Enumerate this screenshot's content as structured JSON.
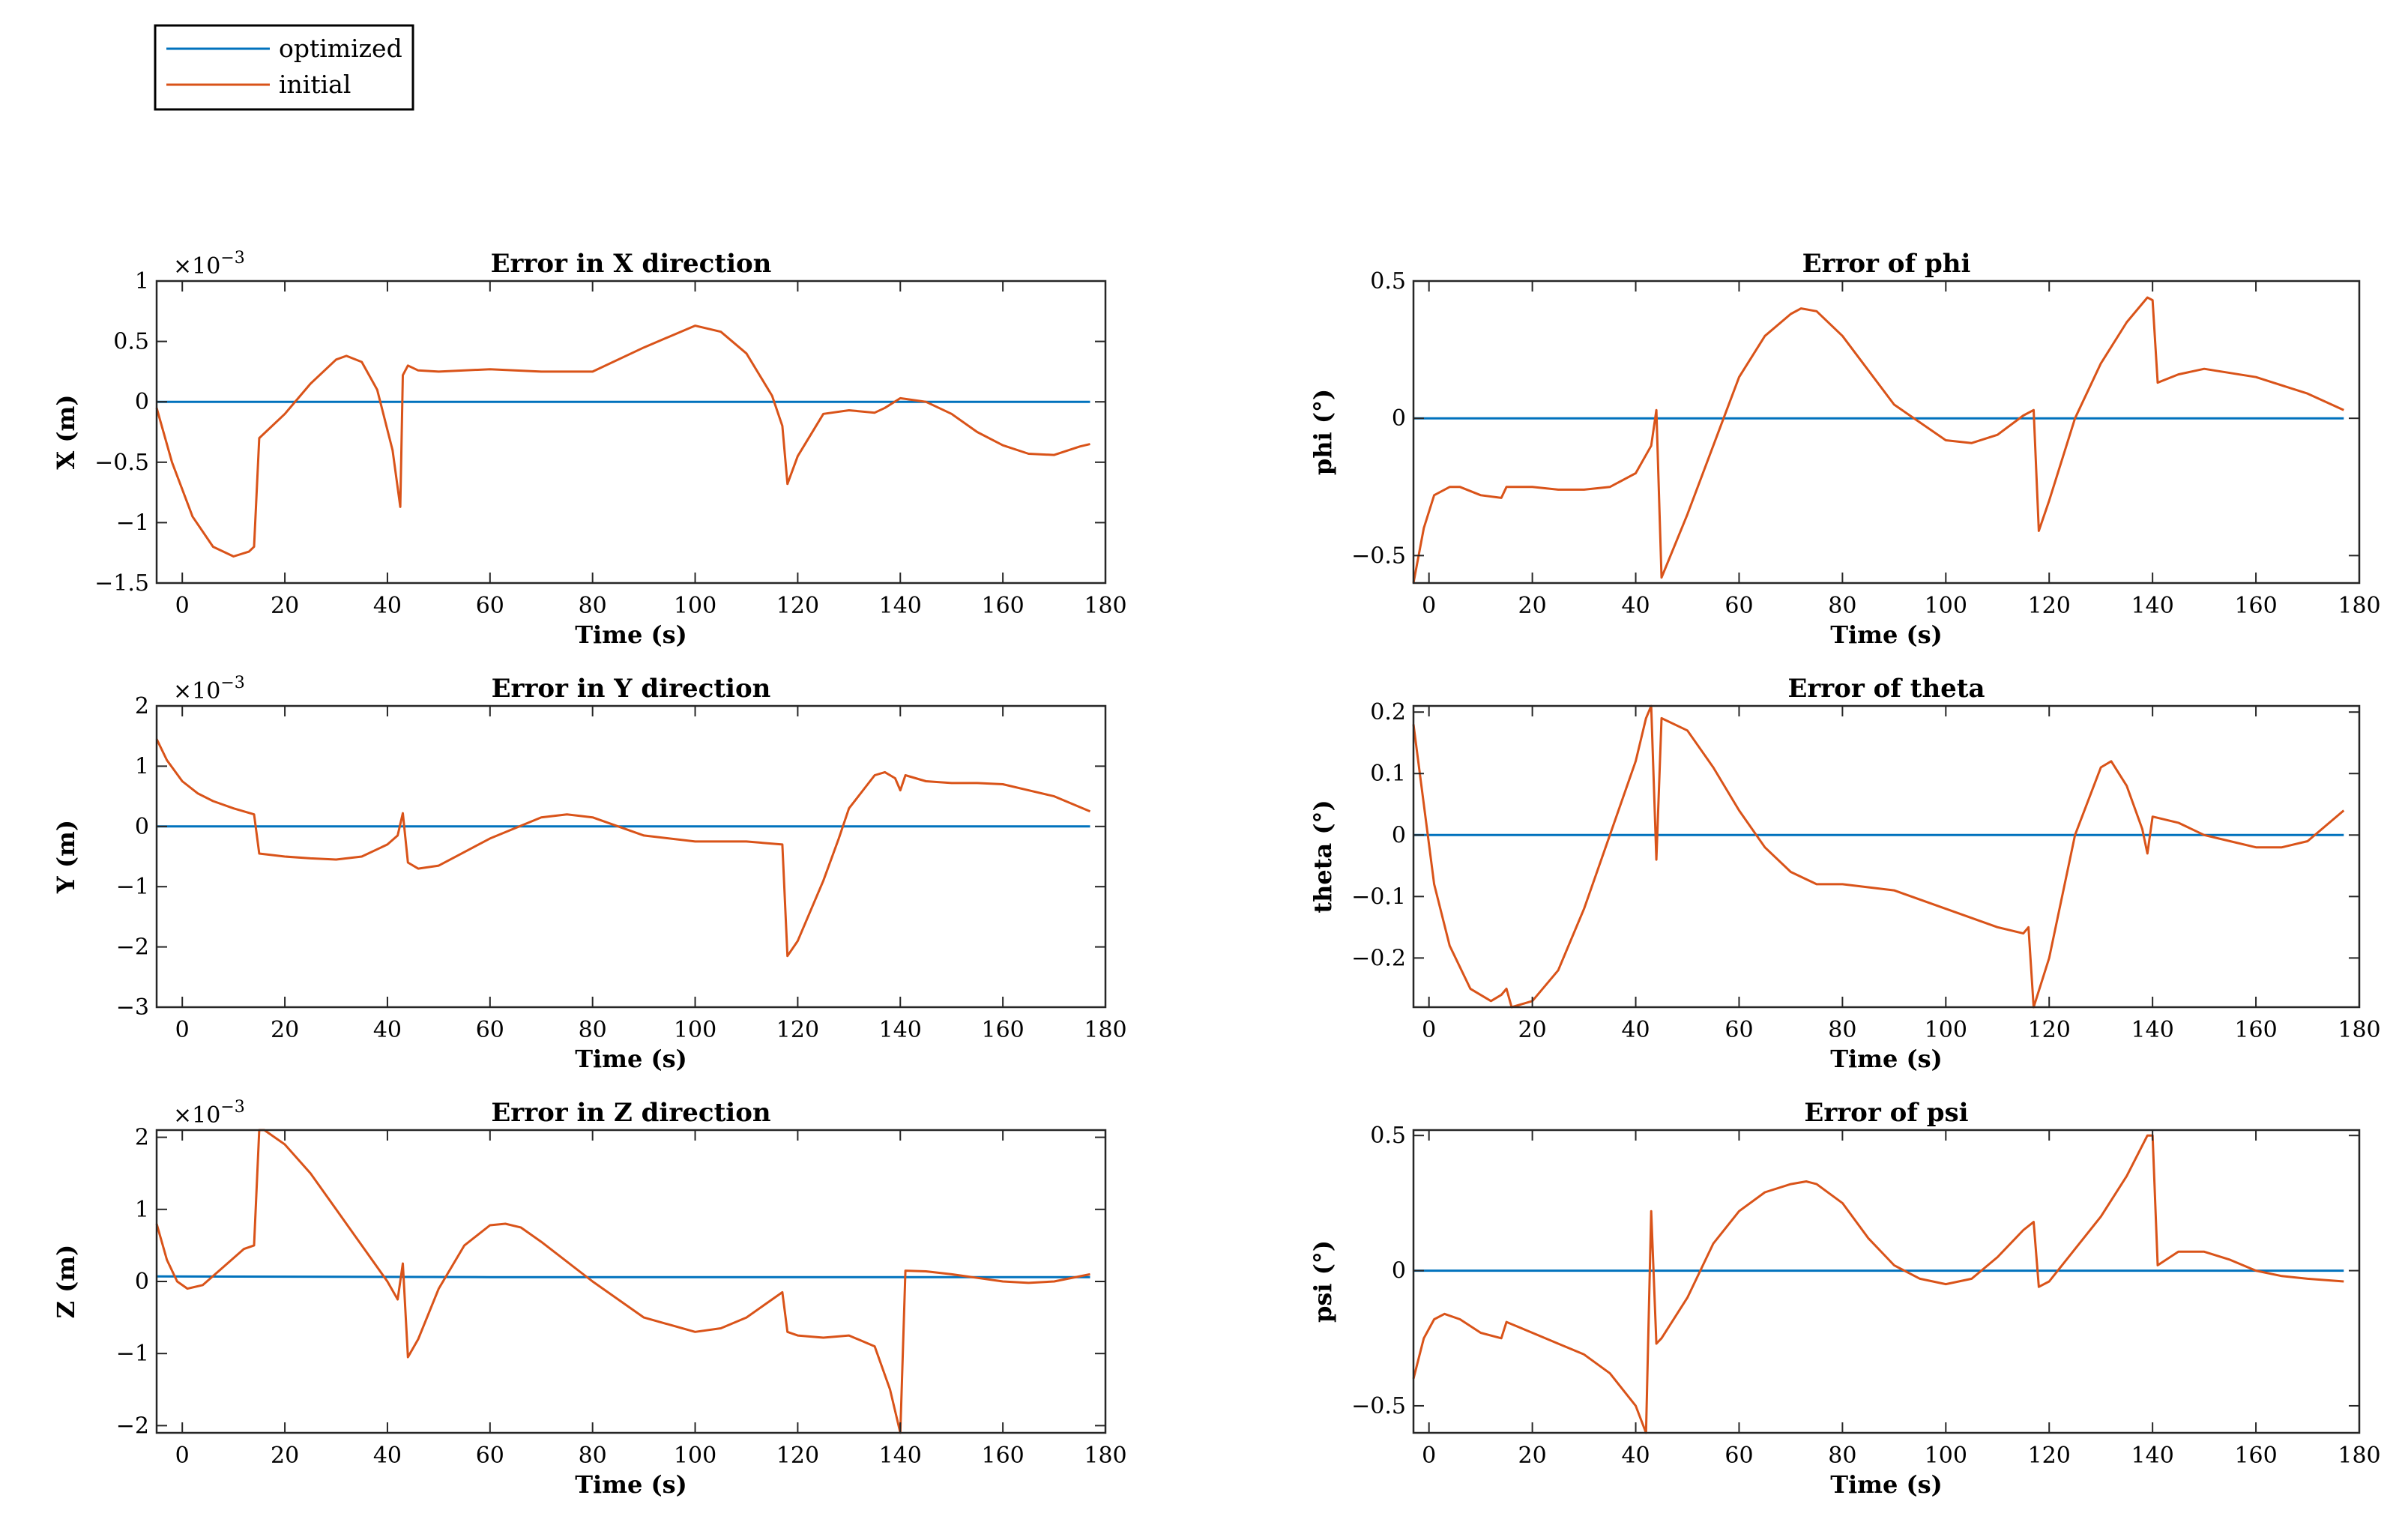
{
  "legend": {
    "entries": [
      {
        "label": "optimized",
        "color": "#0072BD"
      },
      {
        "label": "initial",
        "color": "#D95319"
      }
    ]
  },
  "chart_data": [
    {
      "type": "line",
      "title": "Error in X direction",
      "xlabel": "Time (s)",
      "ylabel": "X (m)",
      "xlim": [
        -5,
        180
      ],
      "ylim": [
        -1.5,
        1
      ],
      "xticks": [
        0,
        20,
        40,
        60,
        80,
        100,
        120,
        140,
        160,
        180
      ],
      "yticks": [
        -1.5,
        -1,
        -0.5,
        0,
        0.5,
        1
      ],
      "ytick_labels": [
        "−1.5",
        "−1",
        "−0.5",
        "0",
        "0.5",
        "1"
      ],
      "exponent_label": "×10",
      "exponent_power": "−3",
      "series": [
        {
          "name": "optimized",
          "x": [
            -5,
            177
          ],
          "y": [
            0,
            0
          ]
        },
        {
          "name": "initial",
          "x": [
            -5,
            -2,
            2,
            6,
            10,
            13,
            14,
            15,
            20,
            25,
            30,
            32,
            35,
            38,
            41,
            42.5,
            43,
            44,
            46,
            50,
            60,
            70,
            80,
            90,
            100,
            105,
            110,
            115,
            117,
            118,
            120,
            125,
            130,
            135,
            137,
            140,
            145,
            150,
            155,
            160,
            165,
            170,
            175,
            177
          ],
          "y": [
            -0.05,
            -0.5,
            -0.95,
            -1.2,
            -1.28,
            -1.24,
            -1.2,
            -0.3,
            -0.1,
            0.15,
            0.35,
            0.38,
            0.33,
            0.1,
            -0.4,
            -0.87,
            0.22,
            0.3,
            0.26,
            0.25,
            0.27,
            0.25,
            0.25,
            0.45,
            0.63,
            0.58,
            0.4,
            0.05,
            -0.2,
            -0.68,
            -0.45,
            -0.1,
            -0.07,
            -0.09,
            -0.05,
            0.03,
            0.0,
            -0.1,
            -0.25,
            -0.36,
            -0.43,
            -0.44,
            -0.37,
            -0.35
          ]
        }
      ]
    },
    {
      "type": "line",
      "title": "Error in Y direction",
      "xlabel": "Time (s)",
      "ylabel": "Y (m)",
      "xlim": [
        -5,
        180
      ],
      "ylim": [
        -3,
        2
      ],
      "xticks": [
        0,
        20,
        40,
        60,
        80,
        100,
        120,
        140,
        160,
        180
      ],
      "yticks": [
        -3,
        -2,
        -1,
        0,
        1,
        2
      ],
      "ytick_labels": [
        "−3",
        "−2",
        "−1",
        "0",
        "1",
        "2"
      ],
      "exponent_label": "×10",
      "exponent_power": "−3",
      "series": [
        {
          "name": "optimized",
          "x": [
            -5,
            177
          ],
          "y": [
            0,
            0
          ]
        },
        {
          "name": "initial",
          "x": [
            -5,
            -3,
            0,
            3,
            6,
            10,
            14,
            15,
            20,
            25,
            30,
            35,
            40,
            42,
            43,
            44,
            46,
            50,
            60,
            70,
            75,
            80,
            90,
            100,
            110,
            117,
            118,
            120,
            125,
            128,
            130,
            135,
            137,
            139,
            140,
            141,
            145,
            150,
            155,
            160,
            165,
            170,
            177
          ],
          "y": [
            1.45,
            1.1,
            0.75,
            0.55,
            0.42,
            0.3,
            0.2,
            -0.45,
            -0.5,
            -0.53,
            -0.55,
            -0.5,
            -0.3,
            -0.15,
            0.22,
            -0.6,
            -0.7,
            -0.65,
            -0.2,
            0.15,
            0.2,
            0.15,
            -0.15,
            -0.25,
            -0.25,
            -0.3,
            -2.15,
            -1.9,
            -0.9,
            -0.2,
            0.3,
            0.85,
            0.9,
            0.8,
            0.6,
            0.85,
            0.75,
            0.72,
            0.72,
            0.7,
            0.6,
            0.5,
            0.25
          ]
        }
      ]
    },
    {
      "type": "line",
      "title": "Error in Z direction",
      "xlabel": "Time (s)",
      "ylabel": "Z (m)",
      "xlim": [
        -5,
        180
      ],
      "ylim": [
        -2.1,
        2.1
      ],
      "xticks": [
        0,
        20,
        40,
        60,
        80,
        100,
        120,
        140,
        160,
        180
      ],
      "yticks": [
        -2,
        -1,
        0,
        1,
        2
      ],
      "ytick_labels": [
        "−2",
        "−1",
        "0",
        "1",
        "2"
      ],
      "exponent_label": "×10",
      "exponent_power": "−3",
      "series": [
        {
          "name": "optimized",
          "x": [
            -5,
            60,
            120,
            177
          ],
          "y": [
            0.07,
            0.06,
            0.06,
            0.06
          ]
        },
        {
          "name": "initial",
          "x": [
            -5,
            -3,
            -1,
            1,
            4,
            8,
            12,
            14,
            15,
            16,
            20,
            25,
            30,
            35,
            40,
            42,
            43,
            44,
            46,
            50,
            55,
            60,
            63,
            66,
            70,
            80,
            90,
            100,
            105,
            110,
            115,
            117,
            118,
            120,
            125,
            130,
            135,
            138,
            140,
            141,
            145,
            150,
            155,
            160,
            165,
            170,
            177
          ],
          "y": [
            0.8,
            0.3,
            0.0,
            -0.1,
            -0.05,
            0.2,
            0.45,
            0.5,
            2.1,
            2.1,
            1.9,
            1.5,
            1.0,
            0.5,
            0.0,
            -0.25,
            0.25,
            -1.05,
            -0.8,
            -0.1,
            0.5,
            0.78,
            0.8,
            0.75,
            0.55,
            0.0,
            -0.5,
            -0.7,
            -0.65,
            -0.5,
            -0.25,
            -0.15,
            -0.7,
            -0.75,
            -0.78,
            -0.75,
            -0.9,
            -1.5,
            -2.1,
            0.15,
            0.14,
            0.1,
            0.05,
            0.0,
            -0.02,
            0.0,
            0.1
          ]
        }
      ]
    },
    {
      "type": "line",
      "title": "Error of phi",
      "xlabel": "Time (s)",
      "ylabel": "phi (°)",
      "xlim": [
        -3,
        180
      ],
      "ylim": [
        -0.6,
        0.5
      ],
      "xticks": [
        0,
        20,
        40,
        60,
        80,
        100,
        120,
        140,
        160,
        180
      ],
      "yticks": [
        -0.5,
        0,
        0.5
      ],
      "ytick_labels": [
        "−0.5",
        "0",
        "0.5"
      ],
      "series": [
        {
          "name": "optimized",
          "x": [
            -3,
            177
          ],
          "y": [
            0,
            0
          ]
        },
        {
          "name": "initial",
          "x": [
            -3,
            -1,
            1,
            4,
            6,
            10,
            14,
            15,
            20,
            25,
            30,
            35,
            40,
            43,
            44,
            45,
            50,
            55,
            60,
            65,
            70,
            72,
            75,
            80,
            90,
            100,
            105,
            110,
            115,
            117,
            118,
            120,
            125,
            130,
            135,
            139,
            140,
            141,
            145,
            150,
            160,
            170,
            177
          ],
          "y": [
            -0.6,
            -0.4,
            -0.28,
            -0.25,
            -0.25,
            -0.28,
            -0.29,
            -0.25,
            -0.25,
            -0.26,
            -0.26,
            -0.25,
            -0.2,
            -0.1,
            0.03,
            -0.58,
            -0.35,
            -0.1,
            0.15,
            0.3,
            0.38,
            0.4,
            0.39,
            0.3,
            0.05,
            -0.08,
            -0.09,
            -0.06,
            0.01,
            0.03,
            -0.41,
            -0.3,
            0.0,
            0.2,
            0.35,
            0.44,
            0.43,
            0.13,
            0.16,
            0.18,
            0.15,
            0.09,
            0.03
          ]
        }
      ]
    },
    {
      "type": "line",
      "title": "Error of theta",
      "xlabel": "Time (s)",
      "ylabel": "theta (°)",
      "xlim": [
        -3,
        180
      ],
      "ylim": [
        -0.28,
        0.21
      ],
      "xticks": [
        0,
        20,
        40,
        60,
        80,
        100,
        120,
        140,
        160,
        180
      ],
      "yticks": [
        -0.2,
        -0.1,
        0,
        0.1,
        0.2
      ],
      "ytick_labels": [
        "−0.2",
        "−0.1",
        "0",
        "0.1",
        "0.2"
      ],
      "series": [
        {
          "name": "optimized",
          "x": [
            -3,
            177
          ],
          "y": [
            0,
            0
          ]
        },
        {
          "name": "initial",
          "x": [
            -3,
            -1,
            1,
            4,
            8,
            12,
            14,
            15,
            16,
            20,
            25,
            30,
            35,
            40,
            42,
            43,
            44,
            45,
            50,
            55,
            60,
            65,
            70,
            75,
            80,
            90,
            100,
            110,
            115,
            116,
            117,
            120,
            125,
            130,
            132,
            135,
            138,
            139,
            140,
            145,
            150,
            155,
            160,
            165,
            170,
            177
          ],
          "y": [
            0.18,
            0.05,
            -0.08,
            -0.18,
            -0.25,
            -0.27,
            -0.26,
            -0.25,
            -0.28,
            -0.27,
            -0.22,
            -0.12,
            0.0,
            0.12,
            0.19,
            0.21,
            -0.04,
            0.19,
            0.17,
            0.11,
            0.04,
            -0.02,
            -0.06,
            -0.08,
            -0.08,
            -0.09,
            -0.12,
            -0.15,
            -0.16,
            -0.15,
            -0.28,
            -0.2,
            0.0,
            0.11,
            0.12,
            0.08,
            0.01,
            -0.03,
            0.03,
            0.02,
            0.0,
            -0.01,
            -0.02,
            -0.02,
            -0.01,
            0.04
          ]
        }
      ]
    },
    {
      "type": "line",
      "title": "Error of psi",
      "xlabel": "Time (s)",
      "ylabel": "psi (°)",
      "xlim": [
        -3,
        180
      ],
      "ylim": [
        -0.6,
        0.52
      ],
      "xticks": [
        0,
        20,
        40,
        60,
        80,
        100,
        120,
        140,
        160,
        180
      ],
      "yticks": [
        -0.5,
        0,
        0.5
      ],
      "ytick_labels": [
        "−0.5",
        "0",
        "0.5"
      ],
      "series": [
        {
          "name": "optimized",
          "x": [
            -3,
            177
          ],
          "y": [
            0,
            0
          ]
        },
        {
          "name": "initial",
          "x": [
            -3,
            -1,
            1,
            3,
            6,
            10,
            14,
            15,
            20,
            25,
            30,
            35,
            40,
            42,
            43,
            44,
            45,
            50,
            55,
            60,
            65,
            70,
            73,
            75,
            80,
            85,
            90,
            95,
            100,
            105,
            110,
            115,
            117,
            118,
            120,
            125,
            130,
            135,
            139,
            140,
            141,
            145,
            150,
            155,
            160,
            165,
            170,
            177
          ],
          "y": [
            -0.4,
            -0.25,
            -0.18,
            -0.16,
            -0.18,
            -0.23,
            -0.25,
            -0.19,
            -0.23,
            -0.27,
            -0.31,
            -0.38,
            -0.5,
            -0.6,
            0.22,
            -0.27,
            -0.25,
            -0.1,
            0.1,
            0.22,
            0.29,
            0.32,
            0.33,
            0.32,
            0.25,
            0.12,
            0.02,
            -0.03,
            -0.05,
            -0.03,
            0.05,
            0.15,
            0.18,
            -0.06,
            -0.04,
            0.08,
            0.2,
            0.35,
            0.5,
            0.5,
            0.02,
            0.07,
            0.07,
            0.04,
            0.0,
            -0.02,
            -0.03,
            -0.04
          ]
        }
      ]
    }
  ]
}
